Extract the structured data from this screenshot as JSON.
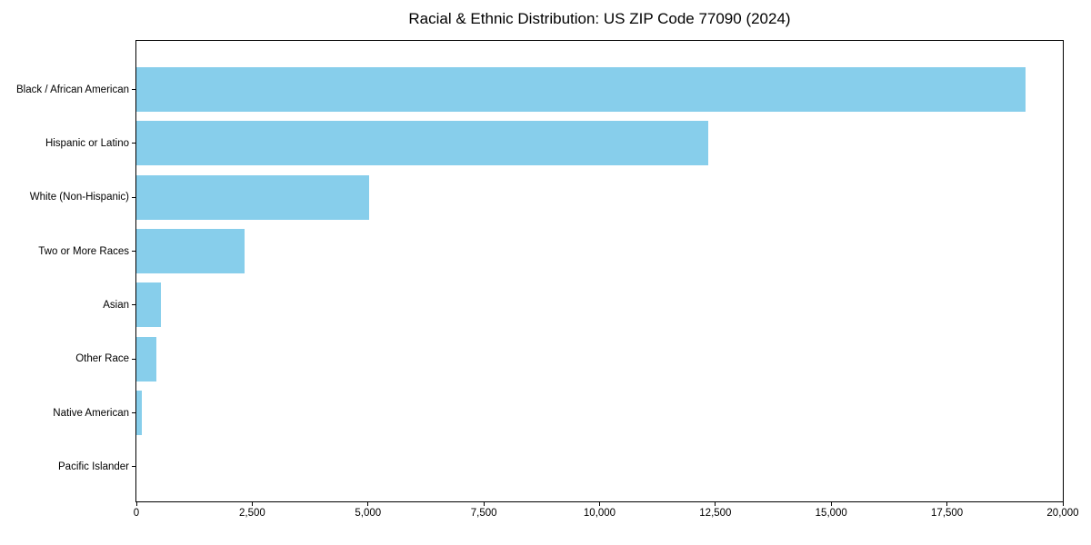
{
  "chart_data": {
    "type": "bar",
    "orientation": "horizontal",
    "title": "Racial & Ethnic Distribution: US ZIP Code 77090 (2024)",
    "categories": [
      "Black / African American",
      "Hispanic or Latino",
      "White (Non-Hispanic)",
      "Two or More Races",
      "Asian",
      "Other Race",
      "Native American",
      "Pacific Islander"
    ],
    "values": [
      19200,
      12350,
      5020,
      2340,
      530,
      430,
      120,
      0
    ],
    "xlabel": "",
    "ylabel": "",
    "xlim": [
      0,
      20000
    ],
    "x_ticks": [
      0,
      2500,
      5000,
      7500,
      10000,
      12500,
      15000,
      17500,
      20000
    ],
    "x_tick_labels": [
      "0",
      "2,500",
      "5,000",
      "7,500",
      "10,000",
      "12,500",
      "15,000",
      "17,500",
      "20,000"
    ],
    "bar_color": "#87CEEB",
    "frame_color": "#000000",
    "grid": false,
    "legend_position": "none"
  }
}
